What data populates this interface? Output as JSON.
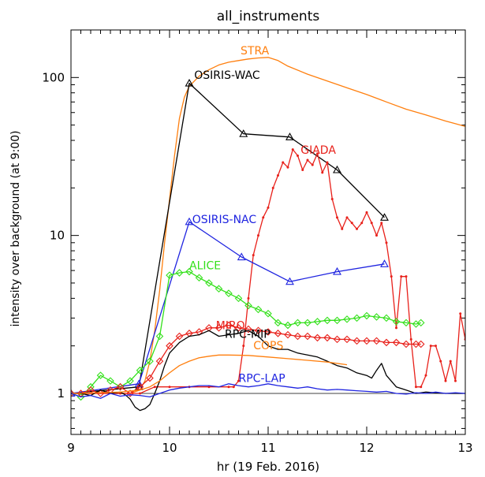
{
  "chart_data": {
    "type": "line",
    "title": "all_instruments",
    "xlabel": "hr (19 Feb. 2016)",
    "ylabel": "intensity over background (at 9:00)",
    "xlim": [
      9,
      13
    ],
    "ylim": [
      0.55,
      200
    ],
    "yscale": "log",
    "grid": false,
    "x_ticks": [
      9,
      10,
      11,
      12,
      13
    ],
    "x_tick_labels": [
      "9",
      "10",
      "11",
      "12",
      "13"
    ],
    "y_ticks": [
      1,
      10,
      100
    ],
    "y_tick_labels": [
      "1",
      "10",
      "100"
    ],
    "reference_line": 1,
    "series": [
      {
        "name": "STRA",
        "color": "#ff7f0e",
        "marker": "none",
        "label_at": [
          10.72,
          140
        ],
        "x": [
          9.0,
          9.2,
          9.4,
          9.6,
          9.7,
          9.75,
          9.8,
          9.85,
          9.9,
          9.95,
          10.0,
          10.05,
          10.1,
          10.15,
          10.2,
          10.3,
          10.4,
          10.5,
          10.6,
          10.7,
          10.8,
          10.9,
          11.0,
          11.1,
          11.2,
          11.4,
          11.6,
          11.8,
          12.0,
          12.2,
          12.4,
          12.6,
          12.8,
          12.9,
          13.0
        ],
        "y": [
          1.0,
          1.0,
          1.0,
          1.0,
          1.05,
          1.2,
          1.6,
          2.5,
          4.5,
          9,
          17,
          32,
          55,
          75,
          88,
          102,
          112,
          120,
          125,
          128,
          131,
          133,
          134,
          128,
          118,
          105,
          95,
          86,
          78,
          70,
          63,
          58,
          53,
          51,
          49
        ]
      },
      {
        "name": "OSIRIS-WAC",
        "color": "#000000",
        "marker": "triangle",
        "label_at": [
          10.25,
          98
        ],
        "x": [
          9.0,
          9.69,
          10.2,
          10.75,
          11.22,
          11.7,
          12.18
        ],
        "y": [
          1.0,
          1.1,
          92,
          44,
          42,
          26,
          13
        ]
      },
      {
        "name": "GIADA",
        "color": "#e8201a",
        "marker": "dot",
        "label_at": [
          11.33,
          33
        ],
        "x": [
          9.0,
          9.5,
          9.7,
          9.85,
          10.0,
          10.2,
          10.4,
          10.6,
          10.65,
          10.7,
          10.75,
          10.8,
          10.85,
          10.9,
          10.95,
          11.0,
          11.05,
          11.1,
          11.15,
          11.2,
          11.25,
          11.3,
          11.35,
          11.4,
          11.45,
          11.5,
          11.55,
          11.6,
          11.65,
          11.7,
          11.75,
          11.8,
          11.85,
          11.9,
          11.95,
          12.0,
          12.05,
          12.1,
          12.15,
          12.2,
          12.25,
          12.3,
          12.35,
          12.4,
          12.45,
          12.5,
          12.55,
          12.6,
          12.65,
          12.7,
          12.75,
          12.8,
          12.85,
          12.9,
          12.95,
          13.0
        ],
        "y": [
          1.0,
          1.0,
          1.0,
          1.1,
          1.1,
          1.1,
          1.1,
          1.1,
          1.1,
          1.2,
          2.0,
          4.0,
          7.5,
          10,
          13,
          15,
          20,
          24,
          29,
          27,
          35,
          32,
          26,
          30,
          28,
          33,
          25,
          29,
          17,
          13,
          11,
          13,
          12,
          11,
          12,
          14,
          12,
          10,
          12,
          9,
          5.5,
          2.6,
          5.5,
          5.5,
          2.2,
          1.1,
          1.1,
          1.3,
          2.0,
          2.0,
          1.6,
          1.2,
          1.6,
          1.2,
          3.2,
          2.2
        ]
      },
      {
        "name": "OSIRIS-NAC",
        "color": "#1f24e0",
        "marker": "triangle",
        "label_at": [
          10.23,
          12
        ],
        "x": [
          9.0,
          9.69,
          10.2,
          10.73,
          11.22,
          11.7,
          12.18
        ],
        "y": [
          1.0,
          1.15,
          12.2,
          7.3,
          5.1,
          5.9,
          6.6
        ]
      },
      {
        "name": "ALICE",
        "color": "#33e01a",
        "marker": "diamond",
        "label_at": [
          10.2,
          6.1
        ],
        "x": [
          9.0,
          9.1,
          9.2,
          9.3,
          9.4,
          9.5,
          9.6,
          9.7,
          9.8,
          9.9,
          10.0,
          10.1,
          10.2,
          10.3,
          10.4,
          10.5,
          10.6,
          10.7,
          10.8,
          10.9,
          11.0,
          11.1,
          11.2,
          11.3,
          11.4,
          11.5,
          11.6,
          11.7,
          11.8,
          11.9,
          12.0,
          12.1,
          12.2,
          12.3,
          12.4,
          12.5,
          12.55
        ],
        "y": [
          1.0,
          0.95,
          1.1,
          1.3,
          1.2,
          1.1,
          1.2,
          1.4,
          1.6,
          2.3,
          5.6,
          5.8,
          5.9,
          5.4,
          5.0,
          4.6,
          4.3,
          4.0,
          3.6,
          3.4,
          3.2,
          2.8,
          2.7,
          2.8,
          2.8,
          2.85,
          2.9,
          2.9,
          2.95,
          3.0,
          3.1,
          3.05,
          3.0,
          2.85,
          2.8,
          2.75,
          2.8
        ]
      },
      {
        "name": "MIRO",
        "color": "#e8201a",
        "marker": "diamond",
        "label_at": [
          10.47,
          2.55
        ],
        "x": [
          9.0,
          9.1,
          9.2,
          9.3,
          9.4,
          9.5,
          9.6,
          9.7,
          9.8,
          9.9,
          10.0,
          10.1,
          10.2,
          10.3,
          10.4,
          10.5,
          10.6,
          10.7,
          10.8,
          10.9,
          11.0,
          11.1,
          11.2,
          11.3,
          11.4,
          11.5,
          11.6,
          11.7,
          11.8,
          11.9,
          12.0,
          12.1,
          12.2,
          12.3,
          12.4,
          12.5,
          12.55
        ],
        "y": [
          1.0,
          1.0,
          1.05,
          1.0,
          1.05,
          1.1,
          1.0,
          1.1,
          1.25,
          1.6,
          2.0,
          2.3,
          2.4,
          2.45,
          2.6,
          2.6,
          2.7,
          2.6,
          2.55,
          2.5,
          2.45,
          2.4,
          2.35,
          2.3,
          2.3,
          2.25,
          2.25,
          2.2,
          2.2,
          2.15,
          2.15,
          2.15,
          2.1,
          2.1,
          2.05,
          2.05,
          2.05
        ]
      },
      {
        "name": "RPC-MIP",
        "color": "#000000",
        "marker": "none",
        "label_at": [
          10.56,
          2.25
        ],
        "x": [
          9.0,
          9.1,
          9.2,
          9.3,
          9.4,
          9.5,
          9.55,
          9.6,
          9.65,
          9.7,
          9.75,
          9.8,
          9.85,
          9.9,
          9.95,
          10.0,
          10.1,
          10.2,
          10.3,
          10.4,
          10.5,
          10.6,
          10.7,
          10.8,
          10.9,
          11.0,
          11.1,
          11.2,
          11.3,
          11.4,
          11.5,
          11.6,
          11.7,
          11.8,
          11.9,
          12.0,
          12.05,
          12.1,
          12.15,
          12.2,
          12.3,
          12.4,
          12.5,
          12.6,
          12.8,
          13.0
        ],
        "y": [
          1.0,
          1.0,
          0.97,
          1.05,
          1.0,
          1.02,
          0.98,
          0.92,
          0.82,
          0.78,
          0.8,
          0.85,
          1.0,
          1.2,
          1.5,
          1.8,
          2.1,
          2.3,
          2.35,
          2.5,
          2.3,
          2.35,
          2.4,
          2.5,
          2.3,
          2.0,
          1.9,
          1.9,
          1.8,
          1.75,
          1.7,
          1.6,
          1.5,
          1.45,
          1.35,
          1.3,
          1.25,
          1.4,
          1.55,
          1.3,
          1.1,
          1.05,
          1.0,
          1.02,
          1.0,
          1.0
        ]
      },
      {
        "name": "COPS",
        "color": "#ff7f0e",
        "marker": "none",
        "label_at": [
          10.85,
          1.9
        ],
        "x": [
          9.0,
          9.5,
          9.7,
          9.8,
          9.9,
          10.0,
          10.1,
          10.2,
          10.3,
          10.4,
          10.5,
          10.6,
          10.8,
          11.0,
          11.2,
          11.4,
          11.6,
          11.8
        ],
        "y": [
          1.0,
          1.02,
          1.05,
          1.1,
          1.2,
          1.35,
          1.5,
          1.6,
          1.68,
          1.72,
          1.75,
          1.75,
          1.74,
          1.7,
          1.66,
          1.62,
          1.58,
          1.52
        ]
      },
      {
        "name": "RPC-LAP",
        "color": "#1f24e0",
        "marker": "none",
        "label_at": [
          10.7,
          1.18
        ],
        "x": [
          9.0,
          9.1,
          9.2,
          9.3,
          9.4,
          9.5,
          9.6,
          9.7,
          9.8,
          9.9,
          10.0,
          10.1,
          10.2,
          10.3,
          10.4,
          10.5,
          10.6,
          10.7,
          10.8,
          10.9,
          11.0,
          11.1,
          11.2,
          11.3,
          11.4,
          11.5,
          11.6,
          11.7,
          11.8,
          11.9,
          12.0,
          12.1,
          12.2,
          12.3,
          12.4,
          12.5,
          12.6,
          12.7,
          12.8,
          12.9,
          13.0
        ],
        "y": [
          1.0,
          0.95,
          0.97,
          0.93,
          1.0,
          0.96,
          0.98,
          0.97,
          0.95,
          1.0,
          1.05,
          1.08,
          1.1,
          1.12,
          1.12,
          1.1,
          1.15,
          1.12,
          1.1,
          1.12,
          1.15,
          1.12,
          1.1,
          1.08,
          1.1,
          1.07,
          1.05,
          1.06,
          1.05,
          1.04,
          1.03,
          1.02,
          1.03,
          1.0,
          0.99,
          1.01,
          1.0,
          1.02,
          1.0,
          1.01,
          1.0
        ]
      }
    ]
  }
}
